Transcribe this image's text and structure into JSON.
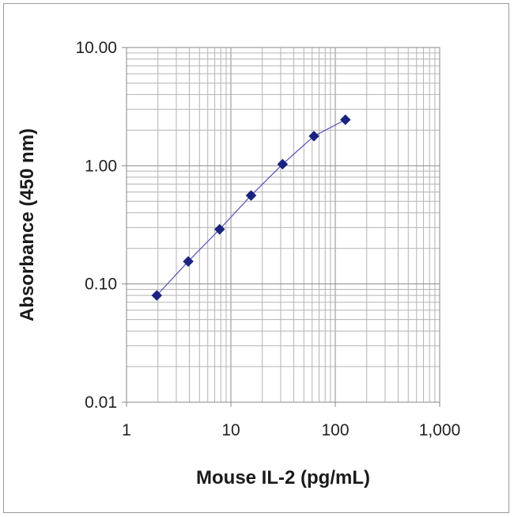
{
  "chart_data": {
    "type": "line",
    "xlabel": "Mouse IL-2 (pg/mL)",
    "ylabel": "Absorbance (450 nm)",
    "x_scale": "log",
    "y_scale": "log",
    "xlim": [
      1,
      1000
    ],
    "ylim": [
      0.01,
      10
    ],
    "x_ticks": [
      "1",
      "10",
      "100",
      "1,000"
    ],
    "y_ticks": [
      "0.01",
      "0.10",
      "1.00",
      "10.00"
    ],
    "grid": true,
    "legend": "none",
    "series": [
      {
        "x": [
          1.95,
          3.9,
          7.8,
          15.6,
          31.25,
          62.5,
          125
        ],
        "y": [
          0.08,
          0.155,
          0.29,
          0.56,
          1.03,
          1.78,
          2.45
        ],
        "color": "#1a237e",
        "line_color": "#5c5cb8",
        "marker": "diamond"
      }
    ]
  }
}
